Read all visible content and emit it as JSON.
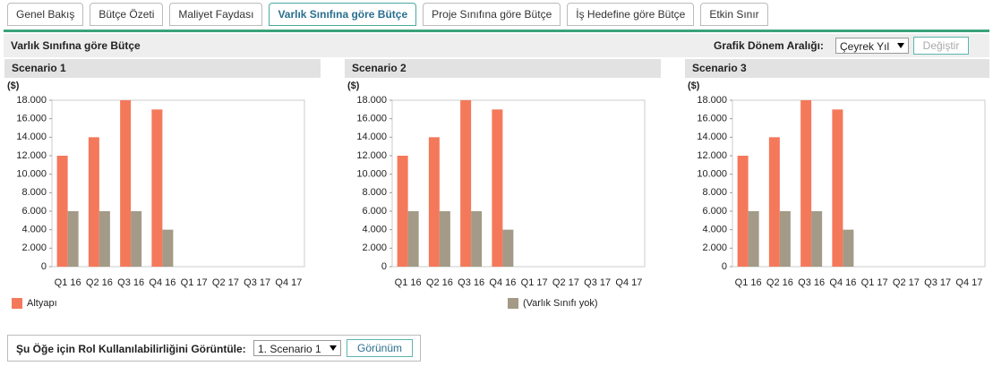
{
  "tabs": {
    "items": [
      "Genel Bakış",
      "Bütçe Özeti",
      "Maliyet Faydası",
      "Varlık Sınıfına göre Bütçe",
      "Proje Sınıfına göre Bütçe",
      "İş Hedefine göre Bütçe",
      "Etkin Sınır"
    ],
    "active": 3
  },
  "toolbar": {
    "title": "Varlık Sınıfına göre Bütçe",
    "period_label": "Grafik Dönem Aralığı:",
    "period_value": "Çeyrek Yıl",
    "button": "Değiştir"
  },
  "legend": [
    {
      "name": "Altyapı",
      "color": "#f4795b"
    },
    {
      "name": "(Varlık Sınıfı yok)",
      "color": "#a39a87"
    }
  ],
  "chart_data": [
    {
      "type": "bar",
      "title": "Scenario 1",
      "unit": "($)",
      "categories": [
        "Q1 16",
        "Q2 16",
        "Q3 16",
        "Q4 16",
        "Q1 17",
        "Q2 17",
        "Q3 17",
        "Q4 17"
      ],
      "series": [
        {
          "values": [
            12000,
            14000,
            18000,
            17000,
            null,
            null,
            null,
            null
          ]
        },
        {
          "values": [
            6000,
            6000,
            6000,
            4000,
            null,
            null,
            null,
            null
          ]
        }
      ],
      "ylim": [
        0,
        18000
      ],
      "yticks": [
        0,
        {
          "value": 2000,
          "label": "2.000"
        },
        {
          "value": 4000,
          "label": "4.000"
        },
        {
          "value": 6000,
          "label": "6.000"
        },
        {
          "value": 8000,
          "label": "8.000"
        },
        {
          "value": 10000,
          "label": "10.000"
        },
        {
          "value": 12000,
          "label": "12.000"
        },
        {
          "value": 14000,
          "label": "14.000"
        },
        {
          "value": 16000,
          "label": "16.000"
        },
        {
          "value": 18000,
          "label": "18.000"
        }
      ]
    },
    {
      "type": "bar",
      "title": "Scenario 2",
      "unit": "($)",
      "categories": [
        "Q1 16",
        "Q2 16",
        "Q3 16",
        "Q4 16",
        "Q1 17",
        "Q2 17",
        "Q3 17",
        "Q4 17"
      ],
      "series": [
        {
          "values": [
            12000,
            14000,
            18000,
            17000,
            null,
            null,
            null,
            null
          ]
        },
        {
          "values": [
            6000,
            6000,
            6000,
            4000,
            null,
            null,
            null,
            null
          ]
        }
      ],
      "ylim": [
        0,
        18000
      ],
      "yticks": [
        0,
        {
          "value": 2000,
          "label": "2.000"
        },
        {
          "value": 4000,
          "label": "4.000"
        },
        {
          "value": 6000,
          "label": "6.000"
        },
        {
          "value": 8000,
          "label": "8.000"
        },
        {
          "value": 10000,
          "label": "10.000"
        },
        {
          "value": 12000,
          "label": "12.000"
        },
        {
          "value": 14000,
          "label": "14.000"
        },
        {
          "value": 16000,
          "label": "16.000"
        },
        {
          "value": 18000,
          "label": "18.000"
        }
      ]
    },
    {
      "type": "bar",
      "title": "Scenario 3",
      "unit": "($)",
      "categories": [
        "Q1 16",
        "Q2 16",
        "Q3 16",
        "Q4 16",
        "Q1 17",
        "Q2 17",
        "Q3 17",
        "Q4 17"
      ],
      "series": [
        {
          "values": [
            12000,
            14000,
            18000,
            17000,
            null,
            null,
            null,
            null
          ]
        },
        {
          "values": [
            6000,
            6000,
            6000,
            4000,
            null,
            null,
            null,
            null
          ]
        }
      ],
      "ylim": [
        0,
        18000
      ],
      "yticks": [
        0,
        {
          "value": 2000,
          "label": "2.000"
        },
        {
          "value": 4000,
          "label": "4.000"
        },
        {
          "value": 6000,
          "label": "6.000"
        },
        {
          "value": 8000,
          "label": "8.000"
        },
        {
          "value": 10000,
          "label": "10.000"
        },
        {
          "value": 12000,
          "label": "12.000"
        },
        {
          "value": 14000,
          "label": "14.000"
        },
        {
          "value": 16000,
          "label": "16.000"
        },
        {
          "value": 18000,
          "label": "18.000"
        }
      ]
    }
  ],
  "footer": {
    "label": "Şu Öğe için Rol Kullanılabilirliğini Görüntüle:",
    "select_value": "1. Scenario 1",
    "button": "Görünüm"
  }
}
